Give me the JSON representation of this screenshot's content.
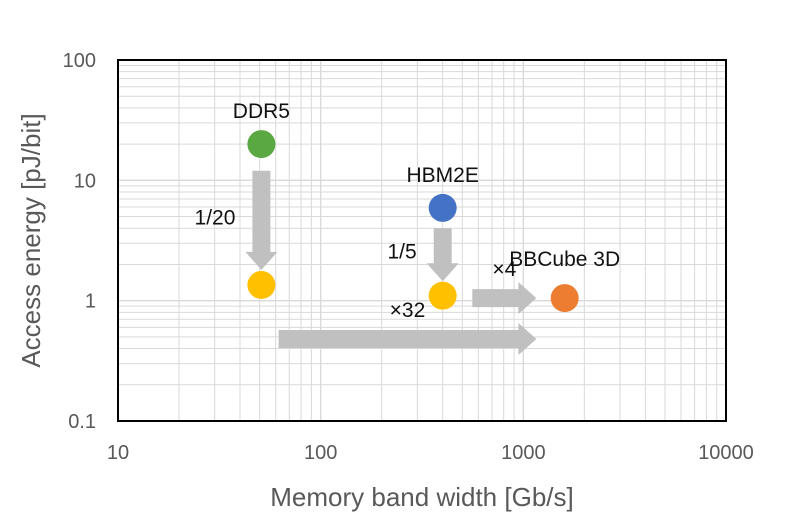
{
  "chart_data": {
    "type": "scatter",
    "xscale": "log",
    "yscale": "log",
    "xlabel": "Memory band width [Gb/s]",
    "ylabel": "Access energy [pJ/bit]",
    "xlim": [
      10,
      10000
    ],
    "ylim": [
      0.1,
      100
    ],
    "xticks": [
      "10",
      "100",
      "1000",
      "10000"
    ],
    "yticks": [
      "0.1",
      "1",
      "10",
      "100"
    ],
    "grid": true,
    "points": [
      {
        "x": 51,
        "y": 20,
        "color": "#5aa842"
      },
      {
        "x": 51,
        "y": 1.35,
        "color": "#ffc000"
      },
      {
        "x": 400,
        "y": 5.9,
        "color": "#4472c4"
      },
      {
        "x": 400,
        "y": 1.1,
        "color": "#ffc000"
      },
      {
        "x": 1600,
        "y": 1.05,
        "color": "#ed7d31"
      }
    ],
    "labels": [
      {
        "text": "DDR5",
        "x": 51,
        "y": 20
      },
      {
        "text": "HBM2E",
        "x": 400,
        "y": 5.9
      },
      {
        "text": "BBCube 3D",
        "x": 1600,
        "y": 1.05
      }
    ],
    "arrows": [
      {
        "label": "1/20",
        "from": [
          51,
          12
        ],
        "to": [
          51,
          1.8
        ]
      },
      {
        "label": "1/5",
        "from": [
          400,
          4.0
        ],
        "to": [
          400,
          1.45
        ]
      },
      {
        "label": "×4",
        "from": [
          560,
          1.05
        ],
        "to": [
          1160,
          1.05
        ]
      },
      {
        "label": "×32",
        "from": [
          62,
          0.48
        ],
        "to": [
          1160,
          0.48
        ]
      }
    ],
    "colors": {
      "arrow": "#c0c0c0",
      "grid": "#d9d9d9",
      "axis_text": "#595959"
    }
  }
}
